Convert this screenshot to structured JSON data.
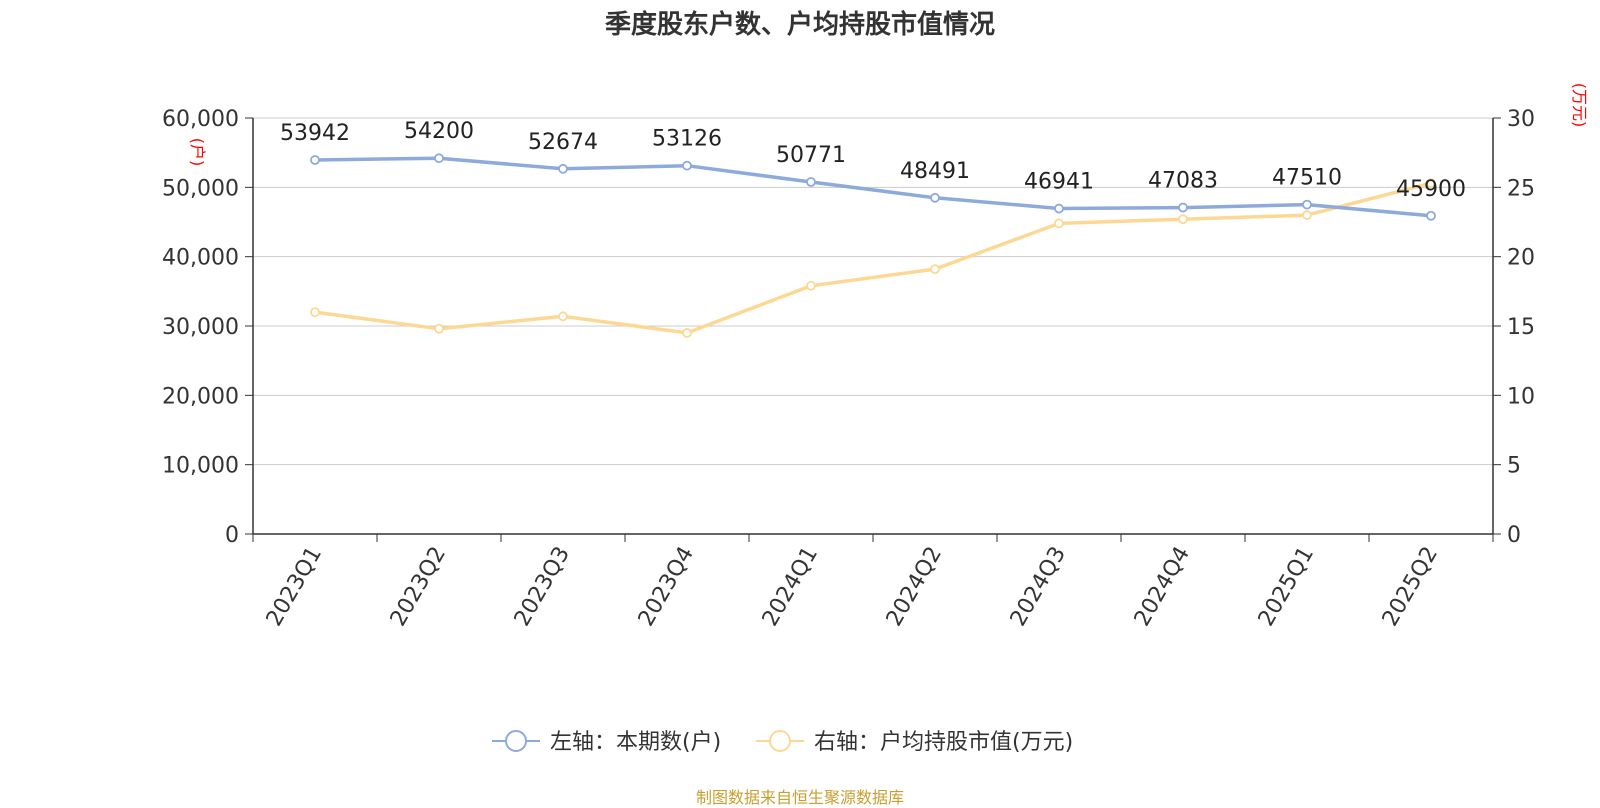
{
  "title": "季度股东户数、户均持股市值情况",
  "source_text": "制图数据来自恒生聚源数据库",
  "colors": {
    "series_left": "#8eaadb",
    "series_right": "#fdd894",
    "axis_name": "#ff0000",
    "source": "#c8a030",
    "grid": "#cccccc",
    "axis": "#333333"
  },
  "chart_data": {
    "type": "line",
    "title": "季度股东户数、户均持股市值情况",
    "categories": [
      "2023Q1",
      "2023Q2",
      "2023Q3",
      "2023Q4",
      "2024Q1",
      "2024Q2",
      "2024Q3",
      "2024Q4",
      "2025Q1",
      "2025Q2"
    ],
    "left_axis": {
      "name": "(户)",
      "ylim": [
        0,
        60000
      ],
      "ticks": [
        "0",
        "10,000",
        "20,000",
        "30,000",
        "40,000",
        "50,000",
        "60,000"
      ]
    },
    "right_axis": {
      "name": "(万元)",
      "ylim": [
        0,
        30
      ],
      "ticks": [
        "0",
        "5",
        "10",
        "15",
        "20",
        "25",
        "30"
      ]
    },
    "series": [
      {
        "name": "左轴：本期数(户)",
        "axis": "left",
        "values": [
          53942,
          54200,
          52674,
          53126,
          50771,
          48491,
          46941,
          47083,
          47510,
          45900
        ],
        "data_labels": [
          "53942",
          "54200",
          "52674",
          "53126",
          "50771",
          "48491",
          "46941",
          "47083",
          "47510",
          "45900"
        ]
      },
      {
        "name": "右轴：户均持股市值(万元)",
        "axis": "right",
        "values": [
          16.0,
          14.8,
          15.7,
          14.5,
          17.9,
          19.1,
          22.4,
          22.7,
          23.0,
          25.3
        ]
      }
    ],
    "grid": true,
    "legend_position": "bottom-center"
  }
}
